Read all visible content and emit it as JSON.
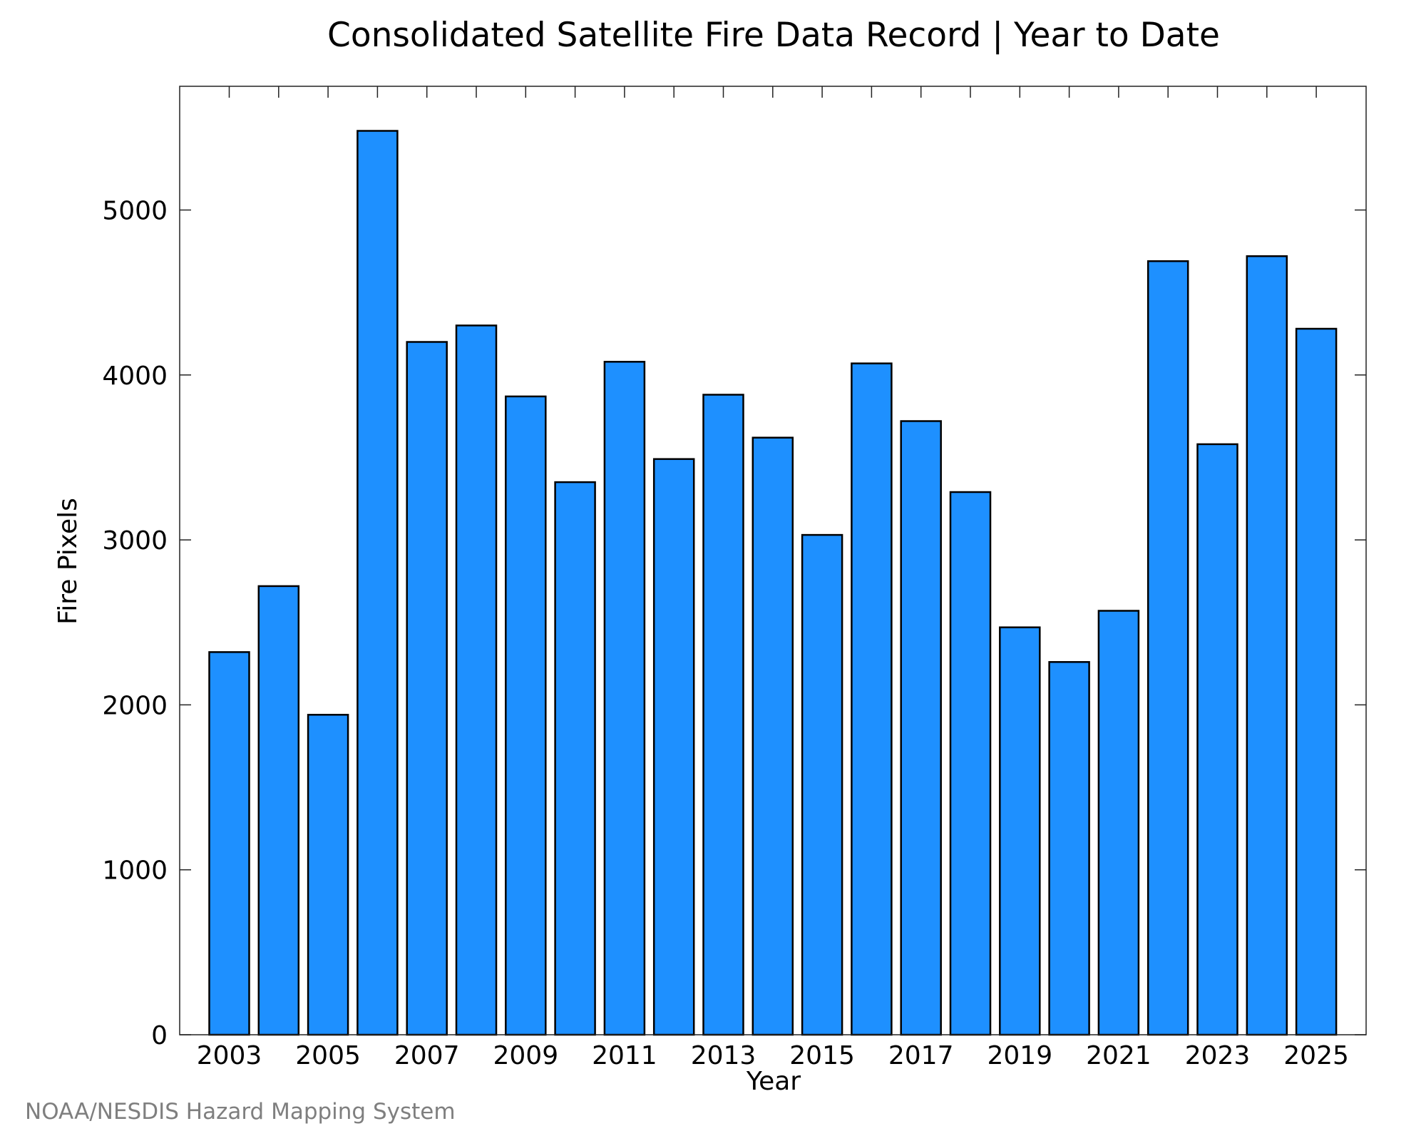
{
  "chart_data": {
    "type": "bar",
    "title": "Consolidated Satellite Fire Data Record | Year to Date",
    "xlabel": "Year",
    "ylabel": "Fire Pixels",
    "categories": [
      "2003",
      "2004",
      "2005",
      "2006",
      "2007",
      "2008",
      "2009",
      "2010",
      "2011",
      "2012",
      "2013",
      "2014",
      "2015",
      "2016",
      "2017",
      "2018",
      "2019",
      "2020",
      "2021",
      "2022",
      "2023",
      "2024",
      "2025"
    ],
    "values": [
      2320,
      2720,
      1940,
      5480,
      4200,
      4300,
      3870,
      3350,
      4080,
      3490,
      3880,
      3620,
      3030,
      4070,
      3720,
      3290,
      2470,
      2260,
      2570,
      4690,
      3580,
      4720,
      4280
    ],
    "x_tick_labels": [
      "2003",
      "2005",
      "2007",
      "2009",
      "2011",
      "2013",
      "2015",
      "2017",
      "2019",
      "2021",
      "2023",
      "2025"
    ],
    "y_ticks": [
      0,
      1000,
      2000,
      3000,
      4000,
      5000
    ],
    "ylim": [
      0,
      5750
    ],
    "bar_color": "#1e90ff",
    "bar_edge_color": "#000000",
    "grid": false,
    "legend": "none"
  },
  "credit": "NOAA/NESDIS Hazard Mapping System"
}
